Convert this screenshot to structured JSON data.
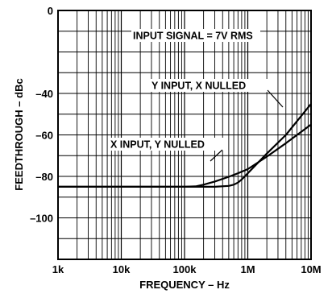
{
  "chart_data": {
    "type": "line",
    "title": "",
    "xlabel": "FREQUENCY – Hz",
    "ylabel": "FEEDTHROUGH – dBc",
    "x_scale": "log",
    "xlim": [
      1000,
      10000000
    ],
    "ylim": [
      -120,
      0
    ],
    "x_ticks": [
      {
        "value": 1000,
        "label": "1k"
      },
      {
        "value": 10000,
        "label": "10k"
      },
      {
        "value": 100000,
        "label": "100k"
      },
      {
        "value": 1000000,
        "label": "1M"
      },
      {
        "value": 10000000,
        "label": "10M"
      }
    ],
    "y_ticks": [
      {
        "value": 0,
        "label": "0"
      },
      {
        "value": -20,
        "label": ""
      },
      {
        "value": -40,
        "label": "–40"
      },
      {
        "value": -60,
        "label": "–60"
      },
      {
        "value": -80,
        "label": "–80"
      },
      {
        "value": -100,
        "label": "–100"
      },
      {
        "value": -120,
        "label": ""
      }
    ],
    "grid": true,
    "series": [
      {
        "name": "X INPUT, Y NULLED",
        "x": [
          1000,
          100000,
          150000,
          200000,
          300000,
          500000,
          700000,
          1000000,
          2000000,
          4000000,
          10000000
        ],
        "y": [
          -85,
          -85,
          -84.8,
          -84,
          -82.5,
          -80.2,
          -78.5,
          -76.5,
          -70.5,
          -64,
          -55
        ]
      },
      {
        "name": "Y INPUT, X NULLED",
        "x": [
          1000,
          150000,
          300000,
          500000,
          600000,
          700000,
          800000,
          1000000,
          2000000,
          4000000,
          10000000
        ],
        "y": [
          -85,
          -85,
          -85,
          -84.6,
          -84,
          -83,
          -81.5,
          -78.5,
          -69,
          -60,
          -45
        ]
      }
    ],
    "annotations": [
      {
        "text": "INPUT SIGNAL = 7V RMS"
      },
      {
        "text": "Y INPUT, X NULLED"
      },
      {
        "text": "X INPUT, Y NULLED"
      }
    ]
  }
}
